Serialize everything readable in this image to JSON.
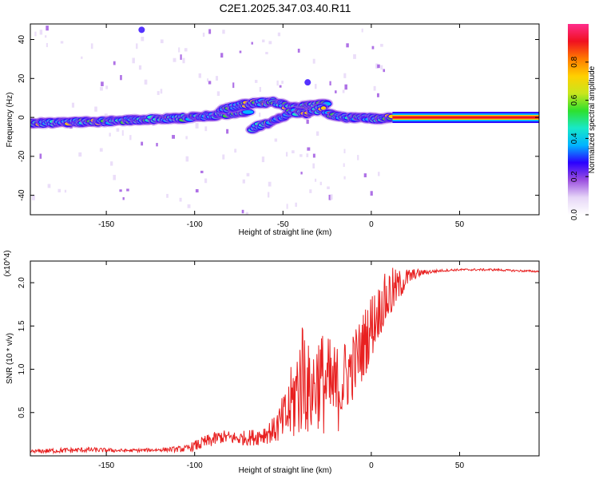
{
  "figure_title": "C2E1.2025.347.03.40.R11",
  "colors": {
    "snr_line": "#e82020",
    "colormap": [
      "#ffffff",
      "#e6d6f7",
      "#9b4fe0",
      "#2b00ff",
      "#00b4ff",
      "#18e8c8",
      "#2ee02e",
      "#c8e61e",
      "#ffd000",
      "#ff7a00",
      "#f01020",
      "#ff2d8c"
    ]
  },
  "chart_data": [
    {
      "type": "heatmap",
      "title": "",
      "xlabel": "Height of straight line (km)",
      "ylabel": "Frequency (Hz)",
      "xlim": [
        -193,
        95
      ],
      "ylim": [
        -50,
        48
      ],
      "x_ticks": [
        -150,
        -100,
        -50,
        0,
        50
      ],
      "y_ticks": [
        40,
        20,
        0,
        -20,
        -40
      ],
      "colorbar": {
        "label": "Normalized spectral amplitude",
        "range": [
          0,
          1
        ],
        "ticks": [
          "0.0",
          "0.2",
          "0.4",
          "0.6",
          "0.8"
        ]
      },
      "ridges": [
        {
          "x": [
            -193,
            -150,
            -100,
            -70
          ],
          "y": [
            -3,
            -2,
            0,
            3
          ]
        },
        {
          "x": [
            -85,
            -70,
            -55,
            -45,
            -35,
            -25
          ],
          "y": [
            4,
            7,
            8,
            5,
            6,
            7
          ]
        },
        {
          "x": [
            -68,
            -55,
            -45,
            -35,
            -27
          ],
          "y": [
            -6,
            -2,
            3,
            2,
            5
          ]
        },
        {
          "x": [
            -25,
            -15,
            -5,
            5,
            12
          ],
          "y": [
            2,
            0,
            0,
            -1,
            0
          ]
        },
        {
          "x": [
            12,
            95
          ],
          "y": [
            0,
            0
          ]
        }
      ],
      "features": [
        {
          "x": -36,
          "y": 18
        },
        {
          "x": -130,
          "y": 45
        }
      ]
    },
    {
      "type": "line",
      "title": "",
      "xlabel": "Height of straight line (km)",
      "ylabel": "SNR (10 * v/v)",
      "y_exponent": "(x10^4)",
      "xlim": [
        -193,
        95
      ],
      "ylim": [
        0,
        2.25
      ],
      "x_ticks": [
        -150,
        -100,
        0,
        50
      ],
      "y_ticks": [
        0.5,
        1.0,
        1.5,
        2.0
      ],
      "series": [
        {
          "x": [
            -193,
            -180,
            -160,
            -140,
            -120,
            -105,
            -95,
            -85,
            -75,
            -65,
            -55,
            -48,
            -42,
            -38,
            -35,
            -30,
            -25,
            -20,
            -15,
            -10,
            -5,
            0,
            5,
            10,
            15,
            20,
            25,
            30,
            35,
            40,
            50,
            60,
            70,
            80,
            95
          ],
          "y": [
            0.05,
            0.06,
            0.07,
            0.06,
            0.07,
            0.08,
            0.15,
            0.22,
            0.2,
            0.22,
            0.3,
            0.45,
            0.75,
            1.0,
            0.7,
            0.9,
            0.8,
            0.75,
            0.9,
            1.05,
            1.25,
            1.5,
            1.7,
            1.85,
            1.95,
            2.05,
            2.1,
            2.12,
            2.13,
            2.14,
            2.15,
            2.15,
            2.15,
            2.14,
            2.13
          ],
          "noise": [
            0.02,
            0.03,
            0.03,
            0.02,
            0.02,
            0.04,
            0.08,
            0.08,
            0.08,
            0.1,
            0.15,
            0.35,
            0.6,
            0.75,
            0.5,
            0.6,
            0.6,
            0.55,
            0.45,
            0.4,
            0.4,
            0.4,
            0.3,
            0.35,
            0.2,
            0.12,
            0.06,
            0.03,
            0.02,
            0.015,
            0.012,
            0.012,
            0.012,
            0.012,
            0.012
          ]
        }
      ]
    }
  ]
}
